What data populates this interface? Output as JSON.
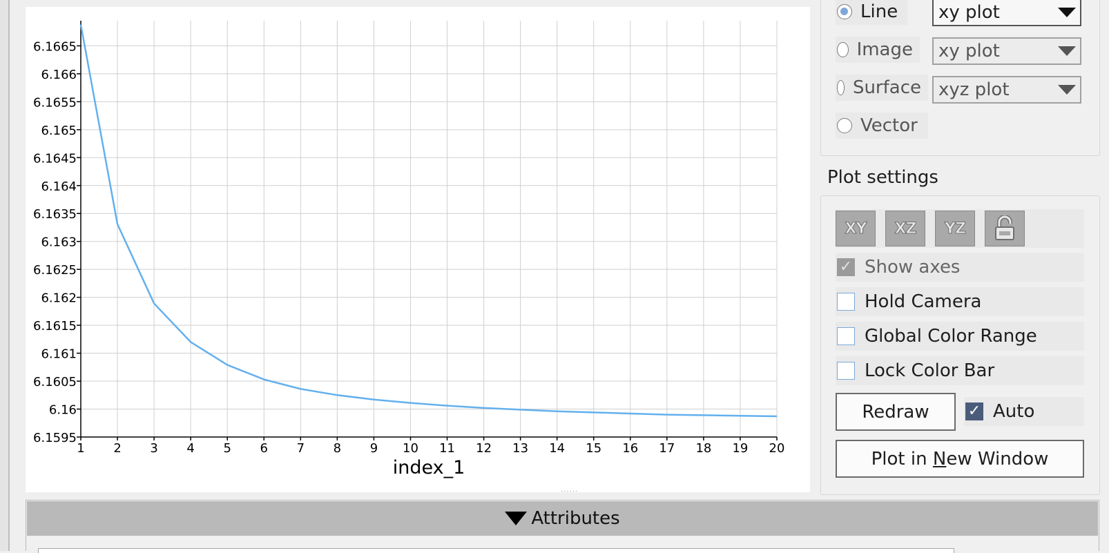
{
  "plot_type": {
    "options": [
      {
        "label": "Line",
        "checked": true,
        "combo_value": "xy plot",
        "combo_enabled": true
      },
      {
        "label": "Image",
        "checked": false,
        "combo_value": "xy plot",
        "combo_enabled": false
      },
      {
        "label": "Surface",
        "checked": false,
        "combo_value": "xyz plot",
        "combo_enabled": false
      },
      {
        "label": "Vector",
        "checked": false
      }
    ]
  },
  "plot_settings": {
    "title": "Plot settings",
    "view_buttons": [
      "XY",
      "XZ",
      "YZ"
    ],
    "lock_icon": "unlock-icon",
    "show_axes_label": "Show axes",
    "hold_camera_label": "Hold Camera",
    "global_color_range_label": "Global Color Range",
    "lock_color_bar_label": "Lock Color Bar",
    "redraw_label": "Redraw",
    "auto_label": "Auto",
    "plot_new_window_prefix": "Plot in ",
    "plot_new_window_mnemonic": "N",
    "plot_new_window_suffix": "ew Window"
  },
  "attributes": {
    "label": "Attributes"
  },
  "colors": {
    "line": "#63b0ee",
    "grid": "#cfcfcf",
    "accent_radio": "#7fa8d8"
  },
  "chart_data": {
    "type": "line",
    "xlabel": "index_1",
    "ylabel": "",
    "x": [
      1,
      2,
      3,
      4,
      5,
      6,
      7,
      8,
      9,
      10,
      11,
      12,
      13,
      14,
      15,
      16,
      17,
      18,
      19,
      20
    ],
    "series": [
      {
        "values": [
          6.16688,
          6.16331,
          6.16189,
          6.1612,
          6.16079,
          6.16053,
          6.16036,
          6.16025,
          6.16017,
          6.16011,
          6.16006,
          6.16002,
          6.15999,
          6.15996,
          6.15994,
          6.15992,
          6.1599,
          6.15989,
          6.15988,
          6.15987
        ]
      }
    ],
    "xlim": [
      1,
      20
    ],
    "ylim": [
      6.1595,
      6.16695
    ],
    "x_ticks": [
      "1",
      "2",
      "3",
      "4",
      "5",
      "6",
      "7",
      "8",
      "9",
      "10",
      "11",
      "12",
      "13",
      "14",
      "15",
      "16",
      "17",
      "18",
      "19",
      "20"
    ],
    "y_ticks": [
      {
        "value": 6.1595,
        "label": "6.1595"
      },
      {
        "value": 6.16,
        "label": "6.16"
      },
      {
        "value": 6.1605,
        "label": "6.1605"
      },
      {
        "value": 6.161,
        "label": "6.161"
      },
      {
        "value": 6.1615,
        "label": "6.1615"
      },
      {
        "value": 6.162,
        "label": "6.162"
      },
      {
        "value": 6.1625,
        "label": "6.1625"
      },
      {
        "value": 6.163,
        "label": "6.163"
      },
      {
        "value": 6.1635,
        "label": "6.1635"
      },
      {
        "value": 6.164,
        "label": "6.164"
      },
      {
        "value": 6.1645,
        "label": "6.1645"
      },
      {
        "value": 6.165,
        "label": "6.165"
      },
      {
        "value": 6.1655,
        "label": "6.1655"
      },
      {
        "value": 6.166,
        "label": "6.166"
      },
      {
        "value": 6.1665,
        "label": "6.1665"
      }
    ],
    "grid": true,
    "legend": "none"
  }
}
